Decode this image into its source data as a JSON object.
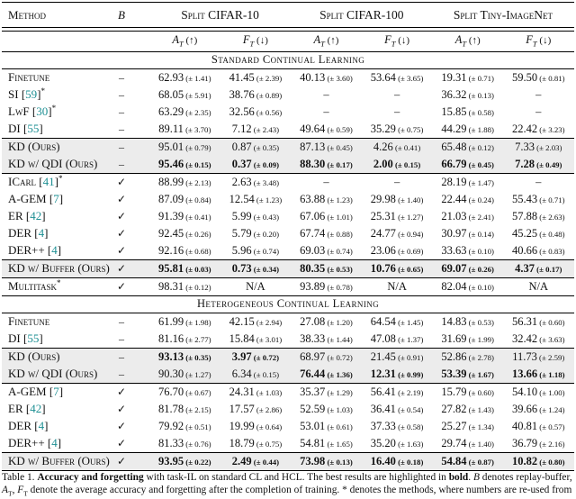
{
  "page": {
    "bg": "#ffffff",
    "text_color": "#111111",
    "rule_color": "#000000",
    "highlight_bg": "#ececec",
    "citation_color": "#1d8f93"
  },
  "symbols": {
    "dash": "–",
    "check": "✓",
    "na": "N/A",
    "pm": "±"
  },
  "header": {
    "method_label": "Method",
    "buffer_symbol": "B",
    "groups": [
      "Split CIFAR-10",
      "Split CIFAR-100",
      "Split Tiny-ImageNet"
    ],
    "acc_letter": "A",
    "forget_letter": "F",
    "metric_sub": "T",
    "acc_arrow": "(↑)",
    "forget_arrow": "(↓)"
  },
  "sections": [
    {
      "title": "Standard Continual Learning",
      "blocks": [
        {
          "highlight": false,
          "rows": [
            {
              "method": "Finetune",
              "buffer": "dash",
              "cells": [
                [
                  "62.93",
                  "1.41"
                ],
                [
                  "41.45",
                  "2.39"
                ],
                [
                  "40.13",
                  "3.60"
                ],
                [
                  "53.64",
                  "3.65"
                ],
                [
                  "19.31",
                  "0.71"
                ],
                [
                  "59.50",
                  "0.81"
                ]
              ]
            },
            {
              "method": "SI",
              "cite": "59",
              "star": true,
              "buffer": "dash",
              "cells": [
                [
                  "68.05",
                  "5.91"
                ],
                [
                  "38.76",
                  "0.89"
                ],
                null,
                null,
                [
                  "36.32",
                  "0.13"
                ],
                null
              ]
            },
            {
              "method": "LwF",
              "cite": "30",
              "star": true,
              "buffer": "dash",
              "cells": [
                [
                  "63.29",
                  "2.35"
                ],
                [
                  "32.56",
                  "0.56"
                ],
                null,
                null,
                [
                  "15.85",
                  "0.58"
                ],
                null
              ]
            },
            {
              "method": "DI",
              "cite": "55",
              "buffer": "dash",
              "cells": [
                [
                  "89.11",
                  "3.70"
                ],
                [
                  "7.12",
                  "2.43"
                ],
                [
                  "49.64",
                  "0.59"
                ],
                [
                  "35.29",
                  "0.75"
                ],
                [
                  "44.29",
                  "1.88"
                ],
                [
                  "22.42",
                  "3.23"
                ]
              ]
            }
          ]
        },
        {
          "highlight": true,
          "rows": [
            {
              "method": "KD (Ours)",
              "buffer": "dash",
              "cells": [
                [
                  "95.01",
                  "0.79"
                ],
                [
                  "0.87",
                  "0.35"
                ],
                [
                  "87.13",
                  "0.45"
                ],
                [
                  "4.26",
                  "0.41"
                ],
                [
                  "65.48",
                  "0.12"
                ],
                [
                  "7.33",
                  "2.03"
                ]
              ]
            },
            {
              "method": "KD w/ QDI (Ours)",
              "buffer": "dash",
              "bold": [
                0,
                1,
                2,
                3,
                4,
                5
              ],
              "cells": [
                [
                  "95.46",
                  "0.15"
                ],
                [
                  "0.37",
                  "0.09"
                ],
                [
                  "88.30",
                  "0.17"
                ],
                [
                  "2.00",
                  "0.15"
                ],
                [
                  "66.79",
                  "0.45"
                ],
                [
                  "7.28",
                  "0.49"
                ]
              ]
            }
          ]
        },
        {
          "highlight": false,
          "rows": [
            {
              "method": "ICarl",
              "cite": "41",
              "star": true,
              "buffer": "check",
              "cells": [
                [
                  "88.99",
                  "2.13"
                ],
                [
                  "2.63",
                  "3.48"
                ],
                null,
                null,
                [
                  "28.19",
                  "1.47"
                ],
                null
              ]
            },
            {
              "method": "A-GEM",
              "cite": "7",
              "buffer": "check",
              "cells": [
                [
                  "87.09",
                  "0.84"
                ],
                [
                  "12.54",
                  "1.23"
                ],
                [
                  "63.88",
                  "1.23"
                ],
                [
                  "29.98",
                  "1.40"
                ],
                [
                  "22.44",
                  "0.24"
                ],
                [
                  "55.43",
                  "0.71"
                ]
              ]
            },
            {
              "method": "ER",
              "cite": "42",
              "buffer": "check",
              "cells": [
                [
                  "91.39",
                  "0.41"
                ],
                [
                  "5.99",
                  "0.43"
                ],
                [
                  "67.06",
                  "1.01"
                ],
                [
                  "25.31",
                  "1.27"
                ],
                [
                  "21.03",
                  "2.41"
                ],
                [
                  "57.88",
                  "2.63"
                ]
              ]
            },
            {
              "method": "DER",
              "cite": "4",
              "buffer": "check",
              "cells": [
                [
                  "92.45",
                  "0.26"
                ],
                [
                  "5.79",
                  "0.20"
                ],
                [
                  "67.74",
                  "0.88"
                ],
                [
                  "24.77",
                  "0.94"
                ],
                [
                  "30.97",
                  "0.14"
                ],
                [
                  "45.25",
                  "0.48"
                ]
              ]
            },
            {
              "method": "DER++",
              "cite": "4",
              "buffer": "check",
              "cells": [
                [
                  "92.16",
                  "0.68"
                ],
                [
                  "5.96",
                  "0.74"
                ],
                [
                  "69.03",
                  "0.74"
                ],
                [
                  "23.06",
                  "0.69"
                ],
                [
                  "33.63",
                  "0.10"
                ],
                [
                  "40.66",
                  "0.83"
                ]
              ]
            }
          ]
        },
        {
          "highlight": true,
          "rows": [
            {
              "method": "KD w/ Buffer (Ours)",
              "buffer": "check",
              "bold": [
                0,
                1,
                2,
                3,
                4,
                5
              ],
              "cells": [
                [
                  "95.81",
                  "0.03"
                ],
                [
                  "0.73",
                  "0.34"
                ],
                [
                  "80.35",
                  "0.53"
                ],
                [
                  "10.76",
                  "0.65"
                ],
                [
                  "69.07",
                  "0.26"
                ],
                [
                  "4.37",
                  "0.17"
                ]
              ]
            }
          ]
        },
        {
          "highlight": false,
          "rows": [
            {
              "method": "Multitask",
              "star": true,
              "buffer": "check",
              "cells": [
                [
                  "98.31",
                  "0.12"
                ],
                "na",
                [
                  "93.89",
                  "0.78"
                ],
                "na",
                [
                  "82.04",
                  "0.10"
                ],
                "na"
              ]
            }
          ]
        }
      ]
    },
    {
      "title": "Heterogeneous Continual Learning",
      "blocks": [
        {
          "highlight": false,
          "rows": [
            {
              "method": "Finetune",
              "buffer": "dash",
              "cells": [
                [
                  "61.99",
                  "1.98"
                ],
                [
                  "42.15",
                  "2.94"
                ],
                [
                  "27.08",
                  "1.20"
                ],
                [
                  "64.54",
                  "1.45"
                ],
                [
                  "14.83",
                  "0.53"
                ],
                [
                  "56.31",
                  "0.60"
                ]
              ]
            },
            {
              "method": "DI",
              "cite": "55",
              "buffer": "dash",
              "cells": [
                [
                  "81.16",
                  "2.77"
                ],
                [
                  "15.84",
                  "3.01"
                ],
                [
                  "38.33",
                  "1.44"
                ],
                [
                  "47.08",
                  "1.37"
                ],
                [
                  "31.69",
                  "1.99"
                ],
                [
                  "32.42",
                  "3.63"
                ]
              ]
            }
          ]
        },
        {
          "highlight": true,
          "rows": [
            {
              "method": "KD (Ours)",
              "buffer": "dash",
              "bold": [
                0,
                1
              ],
              "cells": [
                [
                  "93.13",
                  "0.35"
                ],
                [
                  "3.97",
                  "0.72"
                ],
                [
                  "68.97",
                  "0.72"
                ],
                [
                  "21.45",
                  "0.91"
                ],
                [
                  "52.86",
                  "2.78"
                ],
                [
                  "11.73",
                  "2.59"
                ]
              ]
            },
            {
              "method": "KD w/ QDI (Ours)",
              "buffer": "dash",
              "bold": [
                2,
                3,
                4,
                5
              ],
              "cells": [
                [
                  "90.30",
                  "1.27"
                ],
                [
                  "6.34",
                  "0.15"
                ],
                [
                  "76.44",
                  "1.36"
                ],
                [
                  "12.31",
                  "0.99"
                ],
                [
                  "53.39",
                  "1.67"
                ],
                [
                  "13.66",
                  "1.18"
                ]
              ]
            }
          ]
        },
        {
          "highlight": false,
          "rows": [
            {
              "method": "A-GEM",
              "cite": "7",
              "buffer": "check",
              "cells": [
                [
                  "76.70",
                  "0.67"
                ],
                [
                  "24.31",
                  "1.03"
                ],
                [
                  "35.37",
                  "1.29"
                ],
                [
                  "56.41",
                  "2.19"
                ],
                [
                  "15.79",
                  "0.60"
                ],
                [
                  "54.10",
                  "1.00"
                ]
              ]
            },
            {
              "method": "ER",
              "cite": "42",
              "buffer": "check",
              "cells": [
                [
                  "81.78",
                  "2.15"
                ],
                [
                  "17.57",
                  "2.86"
                ],
                [
                  "52.59",
                  "1.03"
                ],
                [
                  "36.41",
                  "0.54"
                ],
                [
                  "27.82",
                  "1.43"
                ],
                [
                  "39.66",
                  "1.24"
                ]
              ]
            },
            {
              "method": "DER",
              "cite": "4",
              "buffer": "check",
              "cells": [
                [
                  "79.92",
                  "0.51"
                ],
                [
                  "19.99",
                  "0.64"
                ],
                [
                  "53.01",
                  "0.61"
                ],
                [
                  "37.33",
                  "0.58"
                ],
                [
                  "25.27",
                  "1.34"
                ],
                [
                  "40.81",
                  "0.57"
                ]
              ]
            },
            {
              "method": "DER++",
              "cite": "4",
              "buffer": "check",
              "cells": [
                [
                  "81.33",
                  "0.76"
                ],
                [
                  "18.79",
                  "0.75"
                ],
                [
                  "54.81",
                  "1.65"
                ],
                [
                  "35.20",
                  "1.63"
                ],
                [
                  "29.74",
                  "1.40"
                ],
                [
                  "36.79",
                  "2.16"
                ]
              ]
            }
          ]
        },
        {
          "highlight": true,
          "rows": [
            {
              "method": "KD w/ Buffer (Ours)",
              "buffer": "check",
              "bold": [
                0,
                1,
                2,
                3,
                4,
                5
              ],
              "cells": [
                [
                  "93.95",
                  "0.22"
                ],
                [
                  "2.49",
                  "0.44"
                ],
                [
                  "73.98",
                  "0.13"
                ],
                [
                  "16.40",
                  "0.18"
                ],
                [
                  "54.84",
                  "0.87"
                ],
                [
                  "10.82",
                  "0.80"
                ]
              ]
            }
          ]
        }
      ]
    }
  ],
  "caption": {
    "line1": [
      {
        "t": "Table 1. "
      },
      {
        "t": "Accuracy and forgetting",
        "b": true
      },
      {
        "t": " with task-IL on standard CL and HCL. The best results are highlighted in "
      },
      {
        "t": "bold",
        "b": true
      },
      {
        "t": ". "
      },
      {
        "t": "B",
        "i": true
      },
      {
        "t": " denotes replay-buffer,"
      }
    ],
    "line2": [
      {
        "t": "A",
        "i": true
      },
      {
        "t": "T",
        "sub": true
      },
      {
        "t": ", "
      },
      {
        "t": "F",
        "i": true
      },
      {
        "t": "T",
        "sub": true
      },
      {
        "t": " denote the average accuracy and forgetting after the completion of training. * denotes the methods, where numbers are re-used from"
      }
    ]
  }
}
